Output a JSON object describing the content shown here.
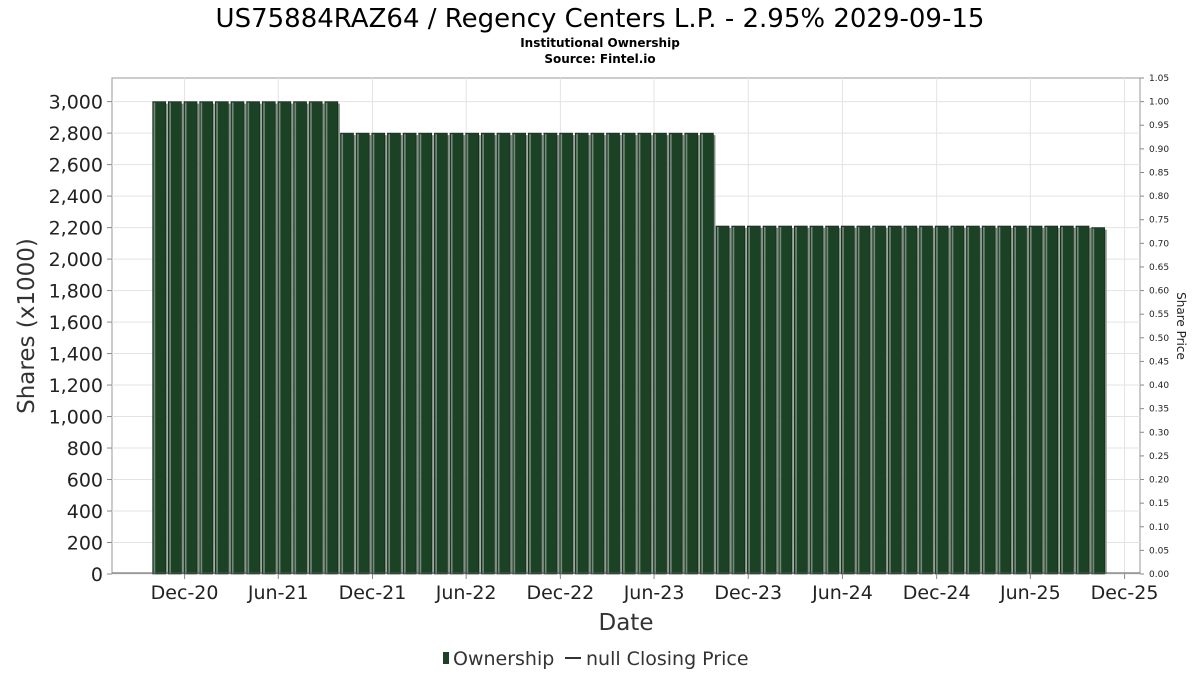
{
  "chart_data": {
    "type": "bar",
    "title": "US75884RAZ64 / Regency Centers L.P. - 2.95% 2029-09-15",
    "subtitle_lines": [
      "Institutional Ownership",
      "Source: Fintel.io"
    ],
    "xlabel": "Date",
    "ylabel": "Shares (x1000)",
    "ylabel_right": "Share Price",
    "ylim": [
      0,
      3150
    ],
    "yticks": [
      0,
      200,
      400,
      600,
      800,
      1000,
      1200,
      1400,
      1600,
      1800,
      2000,
      2200,
      2400,
      2600,
      2800,
      3000
    ],
    "ytick_labels": [
      "0",
      "200",
      "400",
      "600",
      "800",
      "1,000",
      "1,200",
      "1,400",
      "1,600",
      "1,800",
      "2,000",
      "2,200",
      "2,400",
      "2,600",
      "2,800",
      "3,000"
    ],
    "ylim_right": [
      0,
      1.05
    ],
    "yticks_right_labels": [
      "0.00",
      "0.05",
      "0.10",
      "0.15",
      "0.20",
      "0.25",
      "0.30",
      "0.35",
      "0.40",
      "0.45",
      "0.50",
      "0.55",
      "0.60",
      "0.65",
      "0.70",
      "0.75",
      "0.80",
      "0.85",
      "0.90",
      "0.95",
      "1.00",
      "1.05"
    ],
    "xlim": [
      "2020-07-13",
      "2025-12-31"
    ],
    "xticks": [
      {
        "date": "2020-12-01",
        "label": "Dec-20"
      },
      {
        "date": "2021-06-01",
        "label": "Jun-21"
      },
      {
        "date": "2021-12-01",
        "label": "Dec-21"
      },
      {
        "date": "2022-06-01",
        "label": "Jun-22"
      },
      {
        "date": "2022-12-01",
        "label": "Dec-22"
      },
      {
        "date": "2023-06-01",
        "label": "Jun-23"
      },
      {
        "date": "2023-12-01",
        "label": "Dec-23"
      },
      {
        "date": "2024-06-01",
        "label": "Jun-24"
      },
      {
        "date": "2024-12-01",
        "label": "Dec-24"
      },
      {
        "date": "2025-06-01",
        "label": "Jun-25"
      },
      {
        "date": "2025-12-01",
        "label": "Dec-25"
      }
    ],
    "grid": true,
    "legend_placement": "bottom",
    "series": [
      {
        "name": "Ownership",
        "color": "#1b4224",
        "bar_start_date": "2020-09-30",
        "bar_days": 30.4,
        "values": [
          3000,
          3000,
          3000,
          3000,
          3000,
          3000,
          3000,
          3000,
          3000,
          3000,
          3000,
          3000,
          2800,
          2800,
          2800,
          2800,
          2800,
          2800,
          2800,
          2800,
          2800,
          2800,
          2800,
          2800,
          2800,
          2800,
          2800,
          2800,
          2800,
          2800,
          2800,
          2800,
          2800,
          2800,
          2800,
          2800,
          2210,
          2210,
          2210,
          2210,
          2210,
          2210,
          2210,
          2210,
          2210,
          2210,
          2210,
          2210,
          2210,
          2210,
          2210,
          2210,
          2210,
          2210,
          2210,
          2210,
          2210,
          2210,
          2210,
          2210,
          2200
        ]
      },
      {
        "name": "null Closing Price",
        "color": "#333333",
        "values": []
      }
    ]
  }
}
